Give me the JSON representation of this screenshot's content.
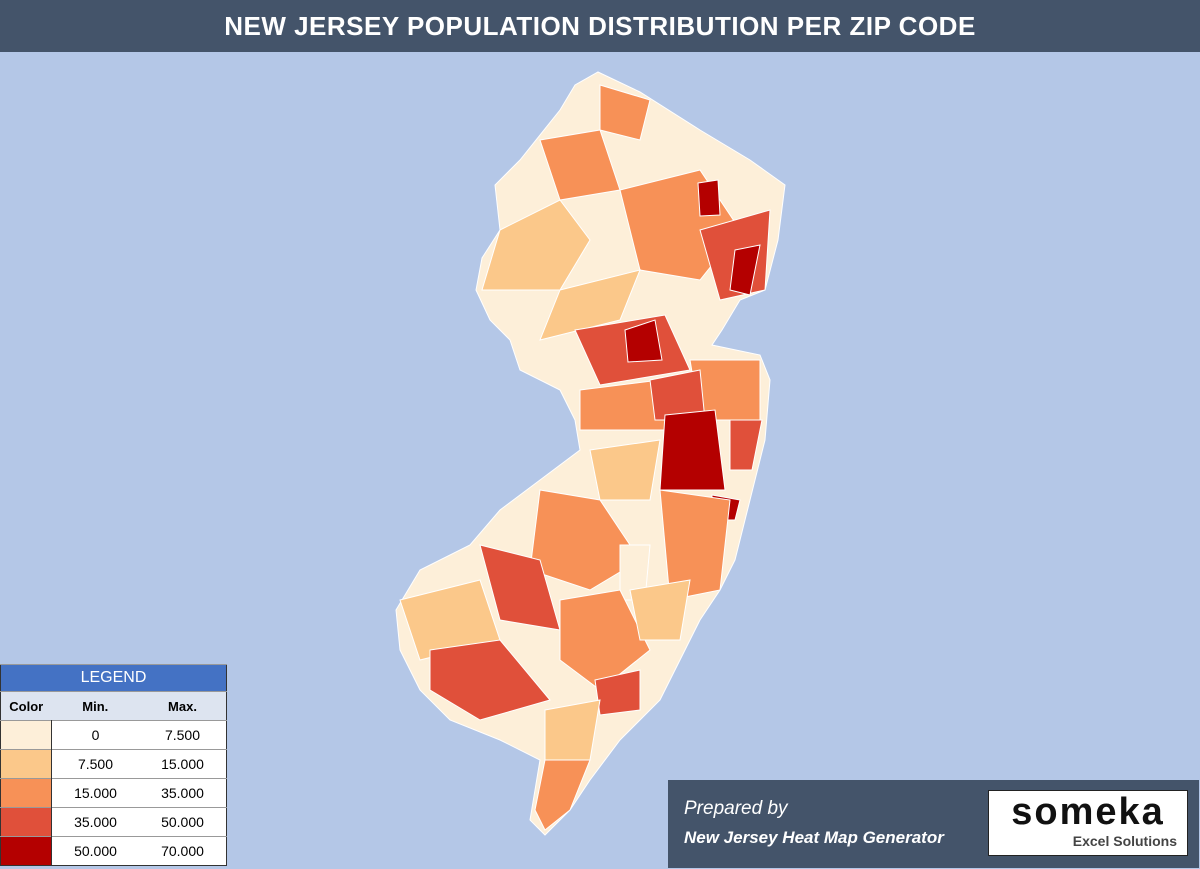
{
  "header": {
    "title": "NEW JERSEY POPULATION DISTRIBUTION PER ZIP CODE"
  },
  "legend": {
    "title": "LEGEND",
    "columns": [
      "Color",
      "Min.",
      "Max."
    ],
    "rows": [
      {
        "color": "#fdefd9",
        "min": "0",
        "max": "7.500"
      },
      {
        "color": "#fbc88a",
        "min": "7.500",
        "max": "15.000"
      },
      {
        "color": "#f79157",
        "min": "15.000",
        "max": "35.000"
      },
      {
        "color": "#e0503a",
        "min": "35.000",
        "max": "50.000"
      },
      {
        "color": "#b40000",
        "min": "50.000",
        "max": "70.000"
      }
    ]
  },
  "footer": {
    "prepared_by": "Prepared by",
    "generator": "New Jersey Heat Map Generator"
  },
  "logo": {
    "name": "someka",
    "tagline": "Excel Solutions"
  }
}
